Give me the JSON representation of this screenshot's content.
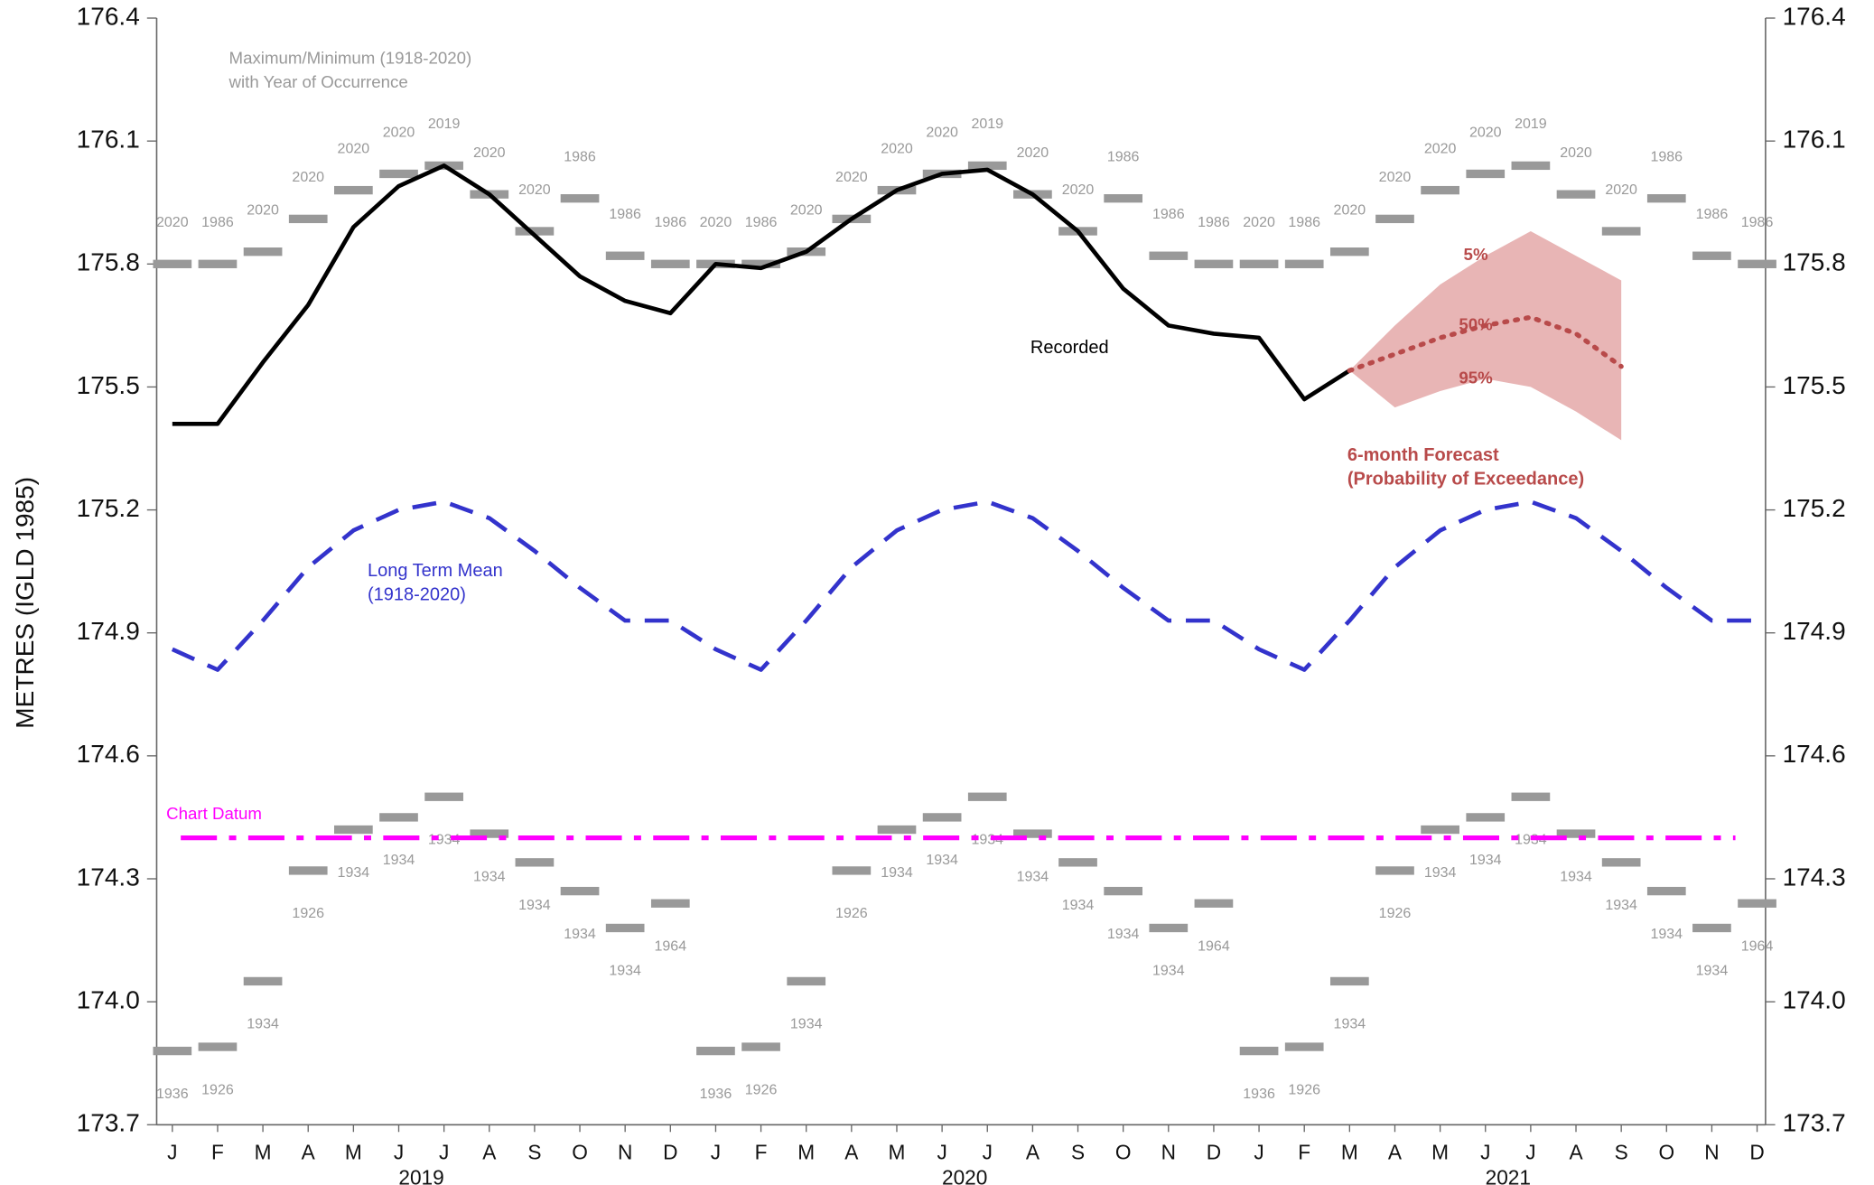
{
  "chart_data": {
    "type": "line",
    "y_label": "METRES (IGLD 1985)",
    "categories": [
      "J",
      "F",
      "M",
      "A",
      "M",
      "J",
      "J",
      "A",
      "S",
      "O",
      "N",
      "D",
      "J",
      "F",
      "M",
      "A",
      "M",
      "J",
      "J",
      "A",
      "S",
      "O",
      "N",
      "D",
      "J",
      "F",
      "M",
      "A",
      "M",
      "J",
      "J",
      "A",
      "S",
      "O",
      "N",
      "D"
    ],
    "year_labels": [
      "2019",
      "2020",
      "2021"
    ],
    "ylim": [
      173.7,
      176.4
    ],
    "yticks": [
      173.7,
      {
        "value": 174.0,
        "label": "174.0"
      },
      174.3,
      174.6,
      174.9,
      175.2,
      175.5,
      175.8,
      176.1,
      176.4
    ],
    "y2lim": [
      173.7,
      176.4
    ],
    "y2ticks": [
      173.7,
      {
        "value": 174.0,
        "label": "174.0"
      },
      174.3,
      174.6,
      174.9,
      175.2,
      175.5,
      175.8,
      176.1,
      176.4
    ],
    "series": [
      {
        "name": "Recorded",
        "color": "#000000",
        "style": "solid",
        "values": [
          175.41,
          175.41,
          175.56,
          175.7,
          175.89,
          175.99,
          176.04,
          175.97,
          175.87,
          175.77,
          175.71,
          175.68,
          175.8,
          175.79,
          175.83,
          175.91,
          175.98,
          176.02,
          176.03,
          175.97,
          175.88,
          175.74,
          175.65,
          175.63,
          175.62,
          175.47,
          175.54,
          null,
          null,
          null,
          null,
          null,
          null,
          null,
          null,
          null
        ]
      },
      {
        "name": "Long Term Mean",
        "subtitle": "(1918-2020)",
        "color": "#3333cc",
        "style": "dashed",
        "values": [
          174.86,
          174.81,
          174.93,
          175.06,
          175.15,
          175.2,
          175.22,
          175.18,
          175.1,
          175.01,
          174.93,
          174.93,
          174.86,
          174.81,
          174.93,
          175.06,
          175.15,
          175.2,
          175.22,
          175.18,
          175.1,
          175.01,
          174.93,
          174.93,
          174.86,
          174.81,
          174.93,
          175.06,
          175.15,
          175.2,
          175.22,
          175.18,
          175.1,
          175.01,
          174.93,
          174.93
        ]
      }
    ],
    "forecast": {
      "note": [
        "6-month Forecast",
        "(Probability of Exceedance)"
      ],
      "band_color": "#e8b5b5",
      "color": "#b84a4a",
      "series": [
        {
          "name": "5%",
          "values": [
            null,
            null,
            null,
            null,
            null,
            null,
            null,
            null,
            null,
            null,
            null,
            null,
            null,
            null,
            null,
            null,
            null,
            null,
            null,
            null,
            null,
            null,
            null,
            null,
            null,
            null,
            175.54,
            175.65,
            175.75,
            175.82,
            175.88,
            175.82,
            175.76,
            null,
            null,
            null
          ]
        },
        {
          "name": "50%",
          "values": [
            null,
            null,
            null,
            null,
            null,
            null,
            null,
            null,
            null,
            null,
            null,
            null,
            null,
            null,
            null,
            null,
            null,
            null,
            null,
            null,
            null,
            null,
            null,
            null,
            null,
            null,
            175.54,
            175.58,
            175.62,
            175.65,
            175.67,
            175.63,
            175.55,
            null,
            null,
            null
          ]
        },
        {
          "name": "95%",
          "values": [
            null,
            null,
            null,
            null,
            null,
            null,
            null,
            null,
            null,
            null,
            null,
            null,
            null,
            null,
            null,
            null,
            null,
            null,
            null,
            null,
            null,
            null,
            null,
            null,
            null,
            null,
            175.54,
            175.45,
            175.49,
            175.52,
            175.5,
            175.44,
            175.37,
            null,
            null,
            null
          ]
        }
      ]
    },
    "extremes": {
      "note": [
        "Maximum/Minimum (1918-2020)",
        "with Year of Occurrence"
      ],
      "color": "#999999",
      "maximum": {
        "values": [
          175.8,
          175.8,
          175.83,
          175.91,
          175.98,
          176.02,
          176.04,
          175.97,
          175.88,
          175.96,
          175.82,
          175.8,
          175.8,
          175.8,
          175.83,
          175.91,
          175.98,
          176.02,
          176.04,
          175.97,
          175.88,
          175.96,
          175.82,
          175.8,
          175.8,
          175.8,
          175.83,
          175.91,
          175.98,
          176.02,
          176.04,
          175.97,
          175.88,
          175.96,
          175.82,
          175.8
        ],
        "years": [
          "2020",
          "1986",
          "2020",
          "2020",
          "2020",
          "2020",
          "2019",
          "2020",
          "2020",
          "1986",
          "1986",
          "1986",
          "2020",
          "1986",
          "2020",
          "2020",
          "2020",
          "2020",
          "2019",
          "2020",
          "2020",
          "1986",
          "1986",
          "1986",
          "2020",
          "1986",
          "2020",
          "2020",
          "2020",
          "2020",
          "2019",
          "2020",
          "2020",
          "1986",
          "1986",
          "1986"
        ]
      },
      "minimum": {
        "values": [
          173.88,
          173.89,
          174.05,
          174.32,
          174.42,
          174.45,
          174.5,
          174.41,
          174.34,
          174.27,
          174.18,
          174.24,
          173.88,
          173.89,
          174.05,
          174.32,
          174.42,
          174.45,
          174.5,
          174.41,
          174.34,
          174.27,
          174.18,
          174.24,
          173.88,
          173.89,
          174.05,
          174.32,
          174.42,
          174.45,
          174.5,
          174.41,
          174.34,
          174.27,
          174.18,
          174.24
        ],
        "years": [
          "1936",
          "1926",
          "1934",
          "1926",
          "1934",
          "1934",
          "1934",
          "1934",
          "1934",
          "1934",
          "1934",
          "1964",
          "1936",
          "1926",
          "1934",
          "1926",
          "1934",
          "1934",
          "1934",
          "1934",
          "1934",
          "1934",
          "1934",
          "1964",
          "1936",
          "1926",
          "1934",
          "1926",
          "1934",
          "1934",
          "1934",
          "1934",
          "1934",
          "1934",
          "1934",
          "1964"
        ]
      }
    },
    "chart_datum": {
      "label": "Chart Datum",
      "value": 174.4,
      "color": "#ff00ff"
    }
  }
}
